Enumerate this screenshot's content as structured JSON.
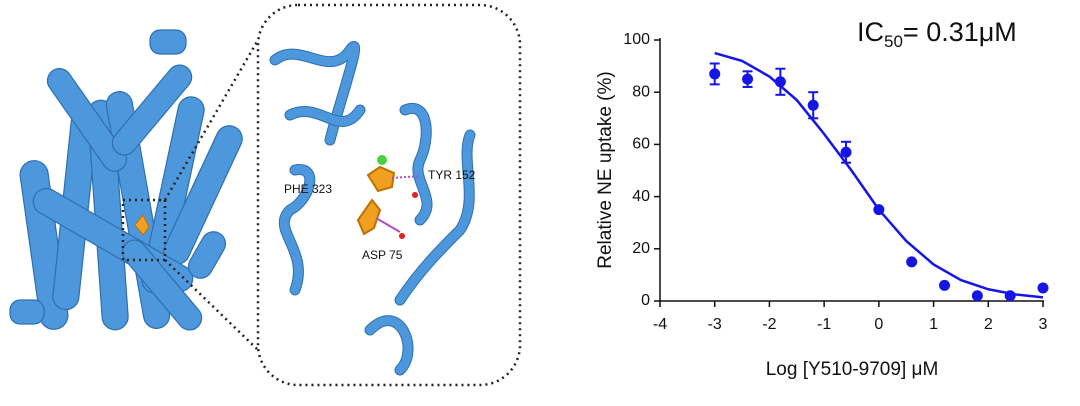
{
  "structure": {
    "labels": [
      "PHE 323",
      "TYR 152",
      "ASP 75"
    ]
  },
  "chart_data": {
    "type": "scatter",
    "y_label": "Relative NE uptake (%)",
    "x_label": "Log [Y510-9709] μM",
    "annotation": [
      "IC",
      "50",
      "= 0.31μM"
    ],
    "xlim": [
      -4,
      3
    ],
    "xticks": [
      -4,
      -3,
      -2,
      -1,
      0,
      1,
      2,
      3
    ],
    "ylim": [
      0,
      100
    ],
    "yticks": [
      0,
      20,
      40,
      60,
      80,
      100
    ],
    "grid": false,
    "series": [
      {
        "type": "scatter",
        "color": "#1515e6",
        "x": [
          -3,
          -2.4,
          -1.8,
          -1.2,
          -0.6,
          0,
          0.6,
          1.2,
          1.8,
          2.4,
          3
        ],
        "values": [
          87,
          85,
          84,
          75,
          57,
          35,
          15,
          6,
          2,
          2,
          5
        ],
        "errors": [
          4,
          3,
          5,
          5,
          4,
          0,
          0,
          0,
          0,
          0,
          0
        ]
      },
      {
        "type": "line",
        "color": "#1515e6",
        "x": [
          -3,
          -2.5,
          -2,
          -1.5,
          -1,
          -0.5,
          0,
          0.5,
          1,
          1.5,
          2,
          2.5,
          3
        ],
        "values": [
          95,
          92,
          86,
          77,
          64,
          50,
          35,
          23,
          14,
          8,
          4.5,
          2.5,
          1.4
        ]
      }
    ]
  }
}
